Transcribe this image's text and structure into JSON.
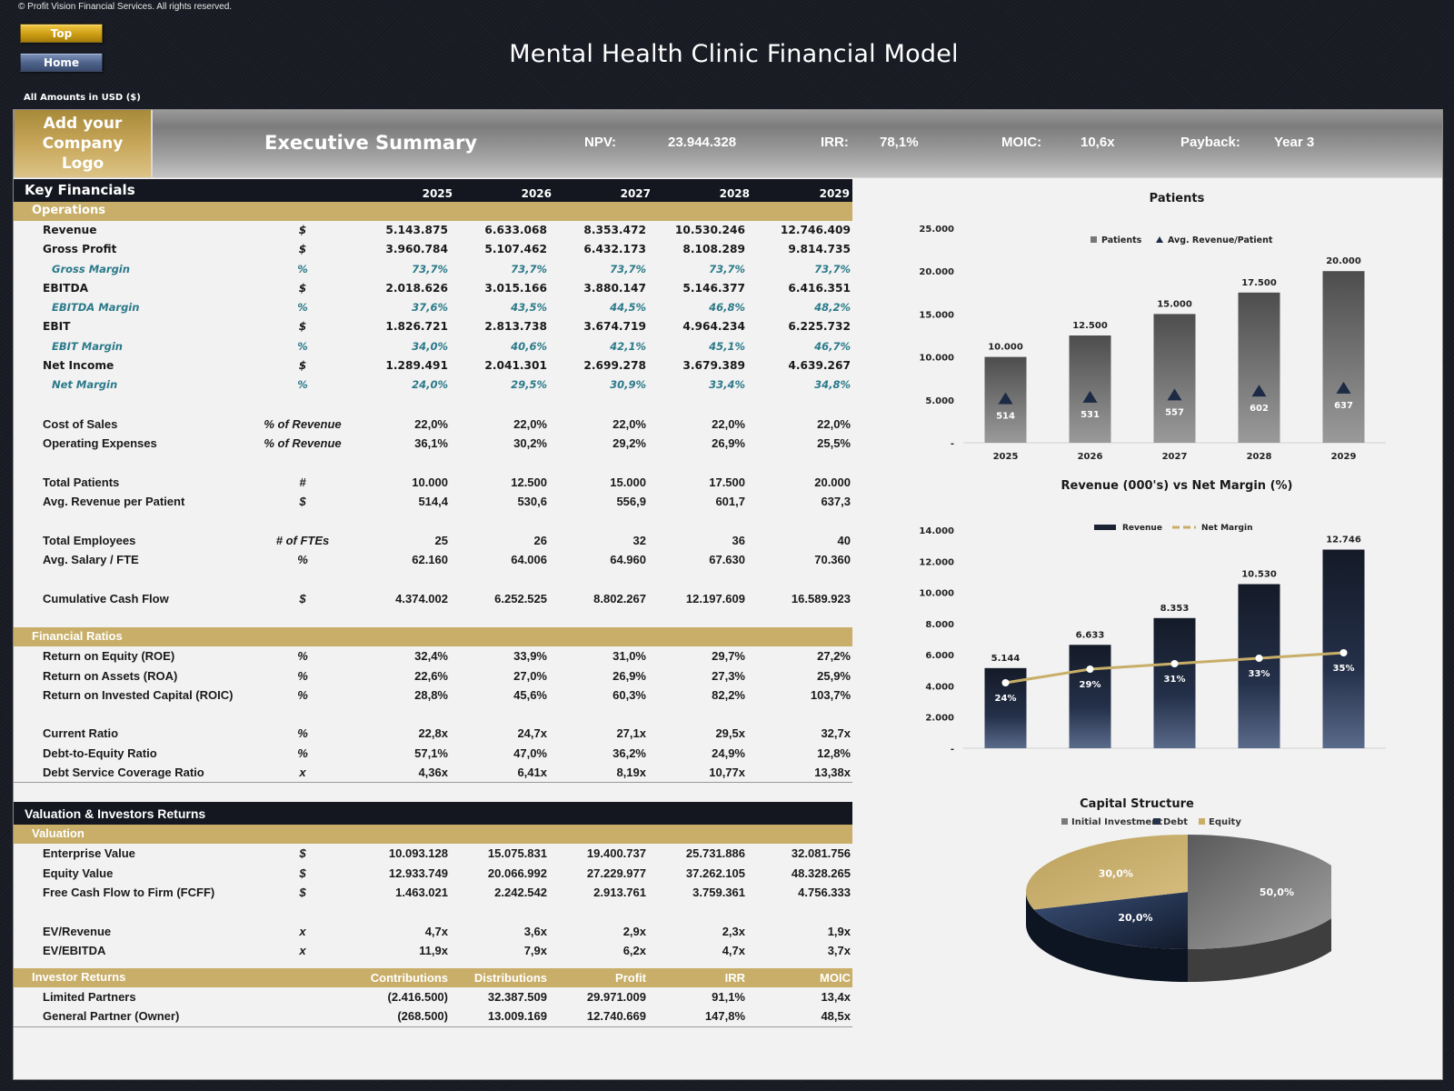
{
  "copyright": "© Profit Vision Financial Services. All rights reserved.",
  "nav": {
    "top_label": "Top",
    "home_label": "Home"
  },
  "title": "Mental Health Clinic Financial Model",
  "amounts_note": "All Amounts in  USD ($)",
  "summary": {
    "logo_text": "Add your Company Logo",
    "title": "Executive Summary",
    "kpis": [
      {
        "label": "NPV:",
        "value": "23.944.328"
      },
      {
        "label": "IRR:",
        "value": "78,1%"
      },
      {
        "label": "MOIC:",
        "value": "10,6x"
      },
      {
        "label": "Payback:",
        "value": "Year 3"
      }
    ]
  },
  "key_financials": {
    "title": "Key Financials",
    "years": [
      "2025",
      "2026",
      "2027",
      "2028",
      "2029"
    ],
    "operations_title": "Operations",
    "operations": [
      {
        "label": "Revenue",
        "unit": "$",
        "values": [
          "5.143.875",
          "6.633.068",
          "8.353.472",
          "10.530.246",
          "12.746.409"
        ]
      },
      {
        "label": "Gross Profit",
        "unit": "$",
        "values": [
          "3.960.784",
          "5.107.462",
          "6.432.173",
          "8.108.289",
          "9.814.735"
        ]
      },
      {
        "label": "Gross Margin",
        "unit": "%",
        "sub": true,
        "values": [
          "73,7%",
          "73,7%",
          "73,7%",
          "73,7%",
          "73,7%"
        ]
      },
      {
        "label": "EBITDA",
        "unit": "$",
        "values": [
          "2.018.626",
          "3.015.166",
          "3.880.147",
          "5.146.377",
          "6.416.351"
        ]
      },
      {
        "label": "EBITDA Margin",
        "unit": "%",
        "sub": true,
        "values": [
          "37,6%",
          "43,5%",
          "44,5%",
          "46,8%",
          "48,2%"
        ]
      },
      {
        "label": "EBIT",
        "unit": "$",
        "values": [
          "1.826.721",
          "2.813.738",
          "3.674.719",
          "4.964.234",
          "6.225.732"
        ]
      },
      {
        "label": "EBIT Margin",
        "unit": "%",
        "sub": true,
        "values": [
          "34,0%",
          "40,6%",
          "42,1%",
          "45,1%",
          "46,7%"
        ]
      },
      {
        "label": "Net Income",
        "unit": "$",
        "values": [
          "1.289.491",
          "2.041.301",
          "2.699.278",
          "3.679.389",
          "4.639.267"
        ]
      },
      {
        "label": "Net Margin",
        "unit": "%",
        "sub": true,
        "values": [
          "24,0%",
          "29,5%",
          "30,9%",
          "33,4%",
          "34,8%"
        ]
      }
    ],
    "costs": [
      {
        "label": "Cost of Sales",
        "unit": "% of Revenue",
        "values": [
          "22,0%",
          "22,0%",
          "22,0%",
          "22,0%",
          "22,0%"
        ]
      },
      {
        "label": "Operating Expenses",
        "unit": "% of Revenue",
        "values": [
          "36,1%",
          "30,2%",
          "29,2%",
          "26,9%",
          "25,5%"
        ]
      }
    ],
    "patients": [
      {
        "label": "Total Patients",
        "unit": "#",
        "values": [
          "10.000",
          "12.500",
          "15.000",
          "17.500",
          "20.000"
        ]
      },
      {
        "label": "Avg. Revenue per Patient",
        "unit": "$",
        "values": [
          "514,4",
          "530,6",
          "556,9",
          "601,7",
          "637,3"
        ]
      }
    ],
    "employees": [
      {
        "label": "Total Employees",
        "unit": "# of FTEs",
        "values": [
          "25",
          "26",
          "32",
          "36",
          "40"
        ]
      },
      {
        "label": "Avg. Salary / FTE",
        "unit": "%",
        "values": [
          "62.160",
          "64.006",
          "64.960",
          "67.630",
          "70.360"
        ]
      }
    ],
    "cash": [
      {
        "label": "Cumulative Cash Flow",
        "unit": "$",
        "values": [
          "4.374.002",
          "6.252.525",
          "8.802.267",
          "12.197.609",
          "16.589.923"
        ]
      }
    ],
    "ratios_title": "Financial Ratios",
    "returns": [
      {
        "label": "Return on Equity (ROE)",
        "unit": "%",
        "values": [
          "32,4%",
          "33,9%",
          "31,0%",
          "29,7%",
          "27,2%"
        ]
      },
      {
        "label": "Return on Assets (ROA)",
        "unit": "%",
        "values": [
          "22,6%",
          "27,0%",
          "26,9%",
          "27,3%",
          "25,9%"
        ]
      },
      {
        "label": "Return on Invested Capital (ROIC)",
        "unit": "%",
        "values": [
          "28,8%",
          "45,6%",
          "60,3%",
          "82,2%",
          "103,7%"
        ]
      }
    ],
    "liquidity": [
      {
        "label": "Current Ratio",
        "unit": "%",
        "values": [
          "22,8x",
          "24,7x",
          "27,1x",
          "29,5x",
          "32,7x"
        ]
      },
      {
        "label": "Debt-to-Equity Ratio",
        "unit": "%",
        "values": [
          "57,1%",
          "47,0%",
          "36,2%",
          "24,9%",
          "12,8%"
        ]
      },
      {
        "label": "Debt Service Coverage Ratio",
        "unit": "x",
        "values": [
          "4,36x",
          "6,41x",
          "8,19x",
          "10,77x",
          "13,38x"
        ]
      }
    ]
  },
  "valuation": {
    "title": "Valuation & Investors Returns",
    "valuation_title": "Valuation",
    "values": [
      {
        "label": "Enterprise Value",
        "unit": "$",
        "values": [
          "10.093.128",
          "15.075.831",
          "19.400.737",
          "25.731.886",
          "32.081.756"
        ]
      },
      {
        "label": "Equity Value",
        "unit": "$",
        "values": [
          "12.933.749",
          "20.066.992",
          "27.229.977",
          "37.262.105",
          "48.328.265"
        ]
      },
      {
        "label": "Free Cash Flow to Firm (FCFF)",
        "unit": "$",
        "values": [
          "1.463.021",
          "2.242.542",
          "2.913.761",
          "3.759.361",
          "4.756.333"
        ]
      }
    ],
    "multiples": [
      {
        "label": "EV/Revenue",
        "unit": "x",
        "values": [
          "4,7x",
          "3,6x",
          "2,9x",
          "2,3x",
          "1,9x"
        ]
      },
      {
        "label": "EV/EBITDA",
        "unit": "x",
        "values": [
          "11,9x",
          "7,9x",
          "6,2x",
          "4,7x",
          "3,7x"
        ]
      }
    ],
    "investor_title": "Investor Returns",
    "investor_columns": [
      "Contributions",
      "Distributions",
      "Profit",
      "IRR",
      "MOIC"
    ],
    "investors": [
      {
        "label": "Limited Partners",
        "values": [
          "(2.416.500)",
          "32.387.509",
          "29.971.009",
          "91,1%",
          "13,4x"
        ]
      },
      {
        "label": "General Partner (Owner)",
        "values": [
          "(268.500)",
          "13.009.169",
          "12.740.669",
          "147,8%",
          "48,5x"
        ]
      }
    ]
  },
  "chart_data": [
    {
      "type": "bar",
      "title": "Patients",
      "categories": [
        "2025",
        "2026",
        "2027",
        "2028",
        "2029"
      ],
      "series": [
        {
          "name": "Patients",
          "kind": "bar",
          "values": [
            10000,
            12500,
            15000,
            17500,
            20000
          ],
          "labels": [
            "10.000",
            "12.500",
            "15.000",
            "17.500",
            "20.000"
          ]
        },
        {
          "name": "Avg. Revenue/Patient",
          "kind": "marker-triangle",
          "axis": "secondary",
          "values": [
            514,
            531,
            557,
            602,
            637
          ],
          "labels": [
            "514",
            "531",
            "557",
            "602",
            "637"
          ]
        }
      ],
      "ylim": [
        0,
        25000
      ],
      "yticks": [
        "-",
        "5.000",
        "10.000",
        "15.000",
        "20.000",
        "25.000"
      ],
      "legend": "top-center",
      "colors": {
        "bar_top": "#4d4d4d",
        "bar_bottom": "#9a9a9a",
        "marker": "#1c2a45"
      }
    },
    {
      "type": "bar",
      "title": "Revenue (000's) vs Net Margin (%)",
      "categories": [
        "2025",
        "2026",
        "2027",
        "2028",
        "2029"
      ],
      "series": [
        {
          "name": "Revenue",
          "kind": "bar",
          "values": [
            5144,
            6633,
            8353,
            10530,
            12746
          ],
          "labels": [
            "5.144",
            "6.633",
            "8.353",
            "10.530",
            "12.746"
          ]
        },
        {
          "name": "Net Margin",
          "kind": "line",
          "axis": "secondary",
          "values": [
            24,
            29,
            31,
            33,
            35
          ],
          "labels": [
            "24%",
            "29%",
            "31%",
            "33%",
            "35%"
          ]
        }
      ],
      "ylim": [
        0,
        14000
      ],
      "yticks": [
        "-",
        "2.000",
        "4.000",
        "6.000",
        "8.000",
        "10.000",
        "12.000",
        "14.000"
      ],
      "legend": "top-center",
      "colors": {
        "bar_top": "#141a27",
        "bar_bottom": "#5a6a8a",
        "line": "#c8ae68"
      }
    },
    {
      "type": "pie",
      "title": "Capital Structure",
      "categories": [
        "Initial Investment",
        "Debt",
        "Equity"
      ],
      "values": [
        50.0,
        20.0,
        30.0
      ],
      "labels": [
        "50,0%",
        "20,0%",
        "30,0%"
      ],
      "legend": "top-center",
      "colors": [
        "#7a7a7a",
        "#22324f",
        "#c8ae68"
      ]
    }
  ]
}
